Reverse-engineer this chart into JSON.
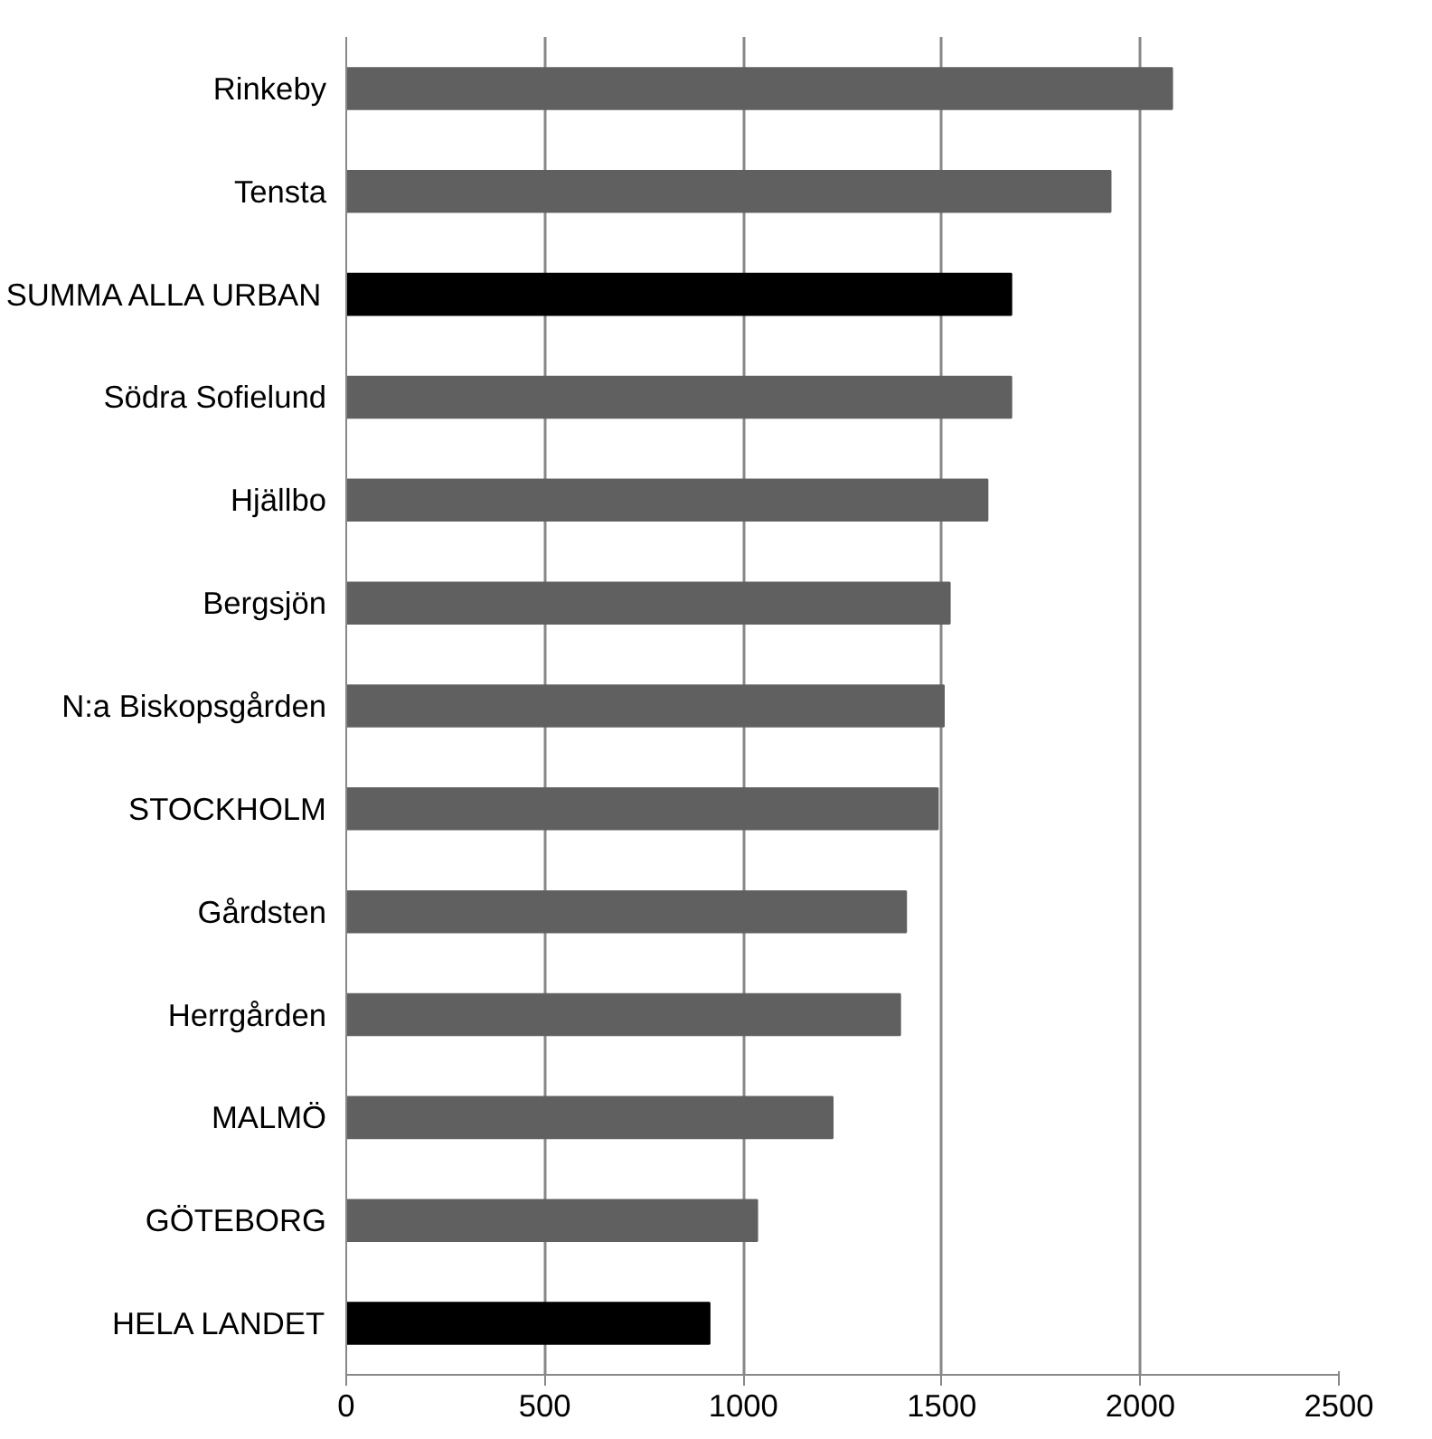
{
  "chart_data": {
    "type": "bar",
    "orientation": "horizontal",
    "categories": [
      "Rinkeby",
      "Tensta",
      "SUMMA ALLA URBAN",
      "Södra Sofielund",
      "Hjällbo",
      "Bergsjön",
      "N:a Biskopsgården",
      "STOCKHOLM",
      "Gårdsten",
      "Herrgården",
      "MALMÖ",
      "GÖTEBORG",
      "HELA LANDET"
    ],
    "values": [
      2080,
      1925,
      1675,
      1675,
      1615,
      1520,
      1505,
      1490,
      1410,
      1395,
      1225,
      1035,
      915
    ],
    "colors": [
      "#606060",
      "#606060",
      "#000000",
      "#606060",
      "#606060",
      "#606060",
      "#606060",
      "#606060",
      "#606060",
      "#606060",
      "#606060",
      "#606060",
      "#000000"
    ],
    "xlim": [
      0,
      2500
    ],
    "xticks": [
      0,
      500,
      1000,
      1500,
      2000,
      2500
    ],
    "grid": "x"
  }
}
